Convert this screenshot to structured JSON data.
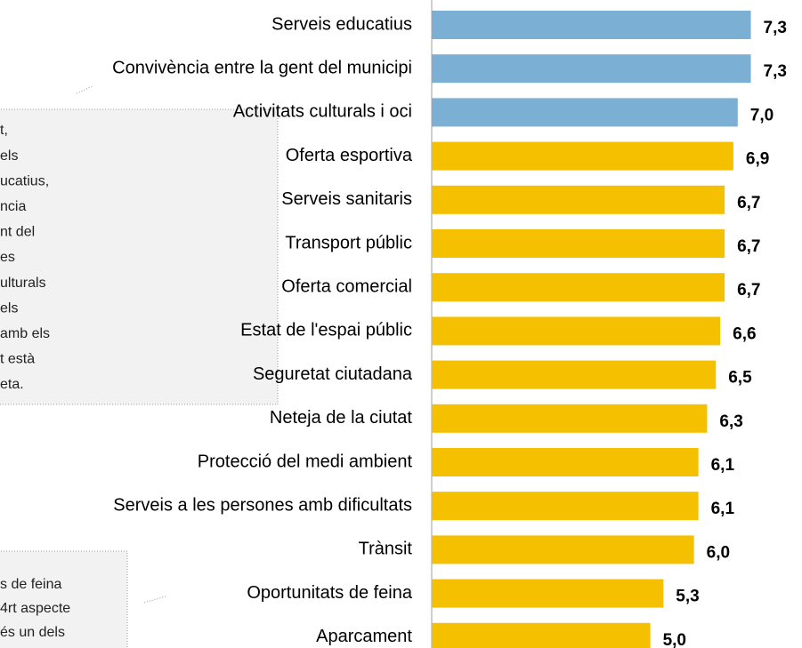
{
  "chart_data": {
    "type": "barh",
    "categories": [
      "Serveis educatius",
      "Convivència entre la gent del municipi",
      "Activitats culturals i oci",
      "Oferta esportiva",
      "Serveis sanitaris",
      "Transport públic",
      "Oferta comercial",
      "Estat de l'espai públic",
      "Seguretat ciutadana",
      "Neteja de la ciutat",
      "Protecció del medi ambient",
      "Serveis a les persones amb dificultats",
      "Trànsit",
      "Oportunitats de feina",
      "Aparcament"
    ],
    "values": [
      7.3,
      7.3,
      7.0,
      6.9,
      6.7,
      6.7,
      6.7,
      6.6,
      6.5,
      6.3,
      6.1,
      6.1,
      6.0,
      5.3,
      5.0
    ],
    "value_labels": [
      "7,3",
      "7,3",
      "7,0",
      "6,9",
      "6,7",
      "6,7",
      "6,7",
      "6,6",
      "6,5",
      "6,3",
      "6,1",
      "6,1",
      "6,0",
      "5,3",
      "5,0"
    ],
    "colors": [
      "#7bafd4",
      "#7bafd4",
      "#7bafd4",
      "#f5c000",
      "#f5c000",
      "#f5c000",
      "#f5c000",
      "#f5c000",
      "#f5c000",
      "#f5c000",
      "#f5c000",
      "#f5c000",
      "#f5c000",
      "#f5c000",
      "#f5c000"
    ],
    "xlim": [
      0,
      8.47
    ],
    "annotations": [
      [
        "t,",
        "els",
        "ucatius,",
        "ncia",
        "nt del",
        "es",
        "ulturals",
        "els",
        "amb els",
        "t està",
        "eta."
      ],
      [
        "s de feina",
        "4rt aspecte",
        "és un dels"
      ]
    ]
  }
}
